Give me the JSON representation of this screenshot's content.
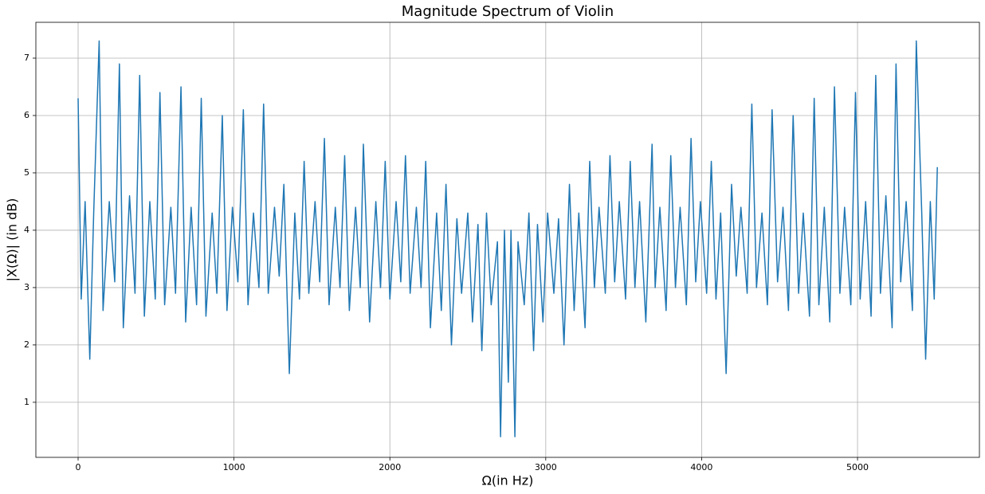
{
  "chart_data": {
    "type": "line",
    "title": "Magnitude Spectrum of Violin",
    "x_label": "Ω(in Hz)",
    "y_label": "|X(Ω)| (in dB)",
    "color": "#1f77b4",
    "grid": true,
    "xlim": [
      -271,
      5782
    ],
    "ylim": [
      0.04,
      7.625
    ],
    "xticks": [
      0,
      1000,
      2000,
      3000,
      4000,
      5000
    ],
    "yticks": [
      1,
      2,
      3,
      4,
      5,
      6,
      7
    ],
    "x": [
      0,
      20,
      45,
      75,
      100,
      135,
      160,
      200,
      235,
      265,
      290,
      330,
      365,
      395,
      425,
      460,
      495,
      525,
      555,
      595,
      625,
      660,
      690,
      725,
      760,
      790,
      820,
      860,
      890,
      925,
      955,
      990,
      1025,
      1060,
      1090,
      1125,
      1160,
      1190,
      1220,
      1260,
      1290,
      1320,
      1355,
      1390,
      1420,
      1450,
      1480,
      1520,
      1550,
      1580,
      1610,
      1650,
      1680,
      1710,
      1740,
      1780,
      1810,
      1830,
      1870,
      1910,
      1940,
      1970,
      2000,
      2040,
      2070,
      2100,
      2130,
      2170,
      2200,
      2230,
      2260,
      2300,
      2330,
      2360,
      2395,
      2430,
      2460,
      2500,
      2530,
      2565,
      2590,
      2620,
      2650,
      2690,
      2710,
      2735,
      2760,
      2777,
      2802,
      2822,
      2862,
      2892,
      2922,
      2947,
      2982,
      3012,
      3052,
      3082,
      3117,
      3152,
      3182,
      3212,
      3252,
      3282,
      3312,
      3342,
      3382,
      3412,
      3442,
      3472,
      3512,
      3542,
      3572,
      3602,
      3642,
      3682,
      3702,
      3732,
      3772,
      3802,
      3832,
      3862,
      3902,
      3932,
      3962,
      3992,
      4032,
      4062,
      4092,
      4122,
      4157,
      4192,
      4222,
      4252,
      4292,
      4322,
      4352,
      4387,
      4422,
      4452,
      4487,
      4522,
      4557,
      4587,
      4622,
      4652,
      4692,
      4722,
      4752,
      4787,
      4822,
      4852,
      4887,
      4917,
      4957,
      4987,
      5017,
      5052,
      5087,
      5117,
      5147,
      5182,
      5222,
      5247,
      5277,
      5312,
      5352,
      5377,
      5412,
      5437,
      5467,
      5492,
      5512
    ],
    "values": [
      6.3,
      2.8,
      4.5,
      1.75,
      4.3,
      7.3,
      2.6,
      4.5,
      3.1,
      6.9,
      2.3,
      4.6,
      2.9,
      6.7,
      2.5,
      4.5,
      2.8,
      6.4,
      2.7,
      4.4,
      2.9,
      6.5,
      2.4,
      4.4,
      2.7,
      6.3,
      2.5,
      4.3,
      2.9,
      6.0,
      2.6,
      4.4,
      3.1,
      6.1,
      2.7,
      4.3,
      3.0,
      6.2,
      2.9,
      4.4,
      3.2,
      4.8,
      1.5,
      4.3,
      2.8,
      5.2,
      2.9,
      4.5,
      3.1,
      5.6,
      2.7,
      4.4,
      3.0,
      5.3,
      2.6,
      4.4,
      3.0,
      5.5,
      2.4,
      4.5,
      3.0,
      5.2,
      2.8,
      4.5,
      3.1,
      5.3,
      2.9,
      4.4,
      3.0,
      5.2,
      2.3,
      4.3,
      2.6,
      4.8,
      2.0,
      4.2,
      2.9,
      4.3,
      2.4,
      4.1,
      1.9,
      4.3,
      2.7,
      3.8,
      0.4,
      4.0,
      1.35,
      4.0,
      0.4,
      3.8,
      2.7,
      4.3,
      1.9,
      4.1,
      2.4,
      4.3,
      2.9,
      4.2,
      2.0,
      4.8,
      2.6,
      4.3,
      2.3,
      5.2,
      3.0,
      4.4,
      2.9,
      5.3,
      3.1,
      4.5,
      2.8,
      5.2,
      3.0,
      4.5,
      2.4,
      5.5,
      3.0,
      4.4,
      2.6,
      5.3,
      3.0,
      4.4,
      2.7,
      5.6,
      3.1,
      4.5,
      2.9,
      5.2,
      2.8,
      4.3,
      1.5,
      4.8,
      3.2,
      4.4,
      2.9,
      6.2,
      3.0,
      4.3,
      2.7,
      6.1,
      3.1,
      4.4,
      2.6,
      6.0,
      2.9,
      4.3,
      2.5,
      6.3,
      2.7,
      4.4,
      2.4,
      6.5,
      2.9,
      4.4,
      2.7,
      6.4,
      2.8,
      4.5,
      2.5,
      6.7,
      2.9,
      4.6,
      2.3,
      6.9,
      3.1,
      4.5,
      2.6,
      7.3,
      4.3,
      1.75,
      4.5,
      2.8,
      5.1
    ]
  }
}
